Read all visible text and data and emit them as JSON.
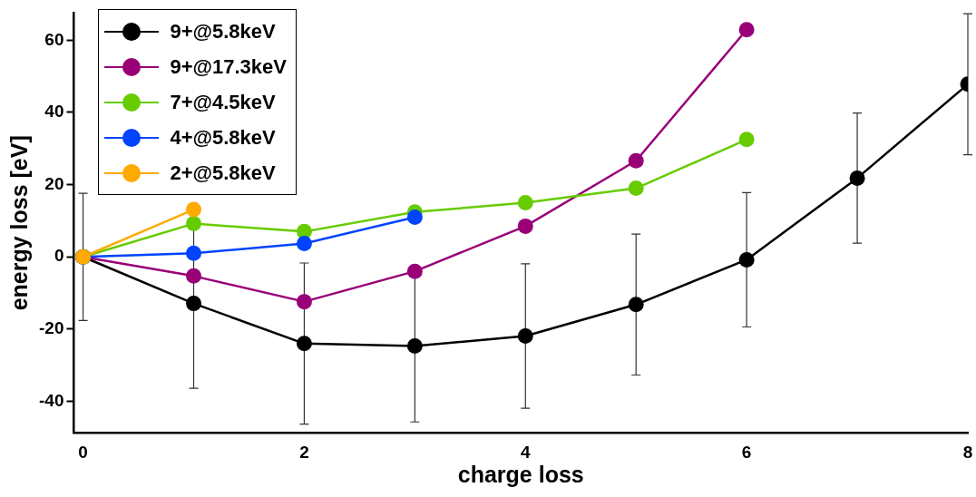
{
  "chart_data": {
    "type": "line",
    "xlabel": "charge loss",
    "ylabel": "energy loss [eV]",
    "xlim": [
      -0.083,
      8
    ],
    "xticks": [
      0,
      2,
      4,
      6,
      8
    ],
    "ylim": [
      -48.7,
      67.5
    ],
    "yticks": [
      -40,
      -20,
      0,
      20,
      40,
      60
    ],
    "grid": false,
    "legend": "top left",
    "marker": "circle",
    "line_style": "solid",
    "series": [
      {
        "name": "9+@5.8keV",
        "color": "#000000",
        "x": [
          0,
          1,
          2,
          3,
          4,
          5,
          6,
          7,
          8
        ],
        "values": [
          0,
          -12.9,
          -24,
          -24.7,
          -21.9,
          -13.2,
          -0.8,
          21.8,
          47.8
        ],
        "errors": [
          17.6,
          23.5,
          22.3,
          21,
          20,
          19.5,
          18.6,
          18,
          19.5
        ]
      },
      {
        "name": "9+@17.3keV",
        "color": "#990077",
        "x": [
          0,
          1,
          2,
          3,
          4,
          5,
          6
        ],
        "values": [
          0,
          -5.3,
          -12.4,
          -4,
          8.5,
          26.6,
          62.9
        ]
      },
      {
        "name": "7+@4.5keV",
        "color": "#66cc00",
        "x": [
          0,
          1,
          2,
          3,
          4,
          5,
          6
        ],
        "values": [
          0,
          9.2,
          7,
          12.4,
          15,
          19,
          32.5
        ]
      },
      {
        "name": "4+@5.8keV",
        "color": "#0044ff",
        "x": [
          0,
          1,
          2,
          3
        ],
        "values": [
          0,
          1,
          3.7,
          11
        ]
      },
      {
        "name": "2+@5.8keV",
        "color": "#ffaa00",
        "x": [
          0,
          1
        ],
        "values": [
          0,
          13.1
        ]
      }
    ]
  }
}
